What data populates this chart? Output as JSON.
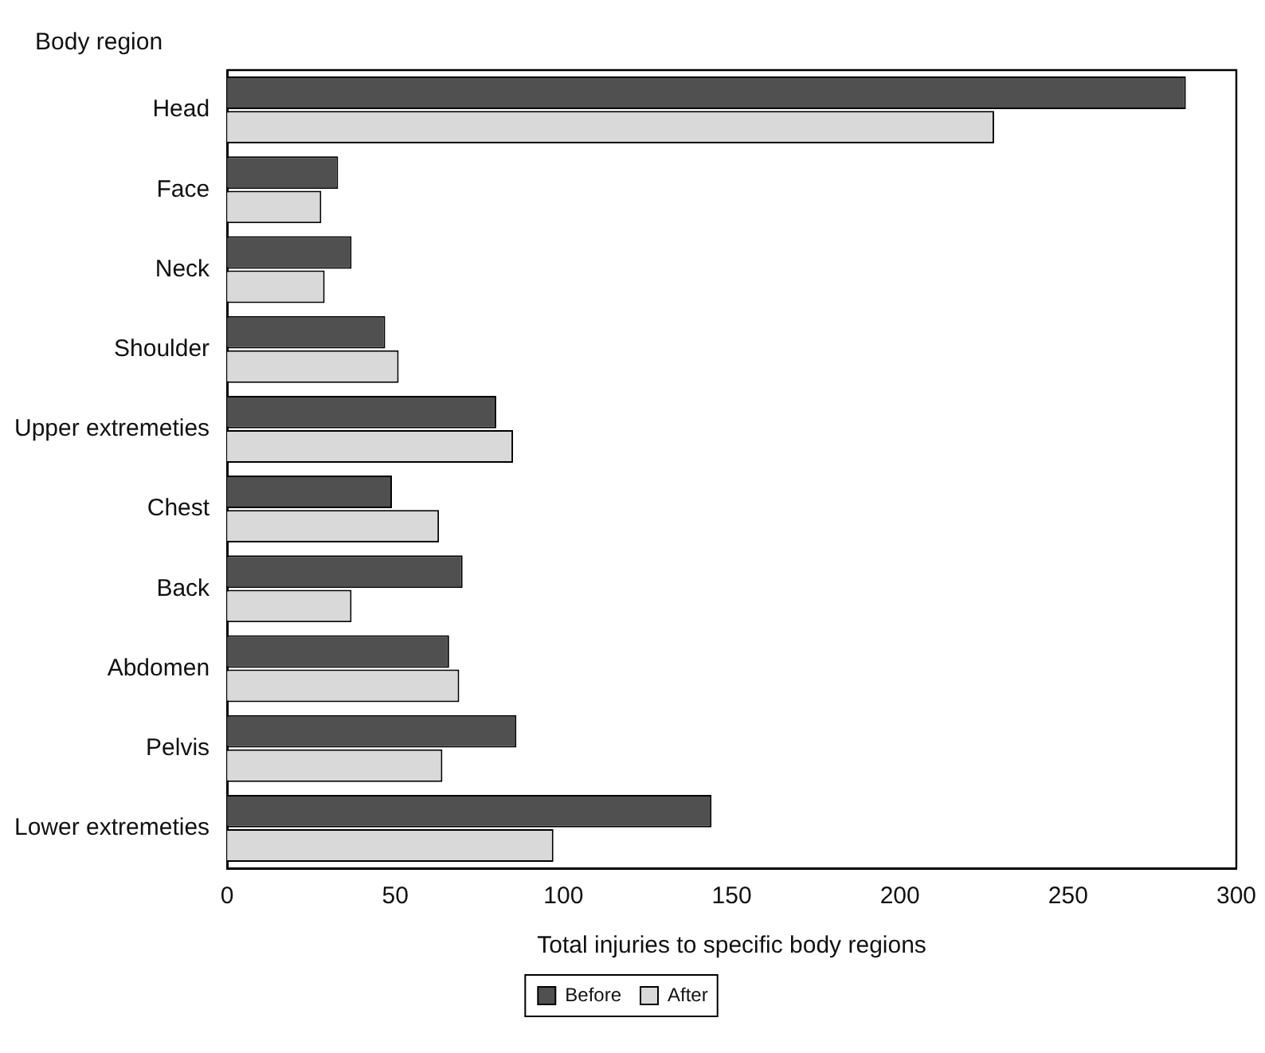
{
  "chart_data": {
    "type": "bar",
    "orientation": "horizontal",
    "ylabel": "Body region",
    "xlabel": "Total injuries to specific body regions",
    "categories": [
      "Head",
      "Face",
      "Neck",
      "Shoulder",
      "Upper extremeties",
      "Chest",
      "Back",
      "Abdomen",
      "Pelvis",
      "Lower extremeties"
    ],
    "series": [
      {
        "name": "Before",
        "color": "#505050",
        "values": [
          285,
          33,
          37,
          47,
          80,
          49,
          70,
          66,
          86,
          144
        ]
      },
      {
        "name": "After",
        "color": "#d9d9d9",
        "values": [
          228,
          28,
          29,
          51,
          85,
          63,
          37,
          69,
          64,
          97
        ]
      }
    ],
    "xlim": [
      0,
      300
    ],
    "xticks": [
      0,
      50,
      100,
      150,
      200,
      250,
      300
    ],
    "grid": false,
    "legend": "bottom"
  }
}
